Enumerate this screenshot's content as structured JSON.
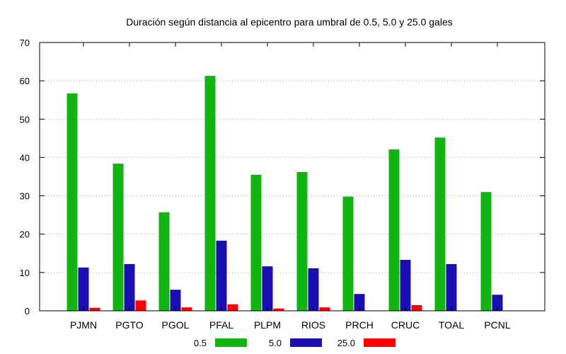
{
  "chart_data": {
    "type": "bar",
    "title": "Duración según distancia al epicentro para umbral de 0.5, 5.0 y 25.0 gales",
    "xlabel": "",
    "ylabel": "",
    "ylim": [
      0,
      70
    ],
    "yticks": [
      0,
      10,
      20,
      30,
      40,
      50,
      60,
      70
    ],
    "grid": true,
    "legend_position": "bottom",
    "categories": [
      "PJMN",
      "PGTO",
      "PGOL",
      "PFAL",
      "PLPM",
      "RIOS",
      "PRCH",
      "CRUC",
      "TOAL",
      "PCNL"
    ],
    "series": [
      {
        "name": "0.5",
        "color": "#11b411",
        "values": [
          56.7,
          38.4,
          25.7,
          61.3,
          35.5,
          36.2,
          29.8,
          42.1,
          45.2,
          31.0
        ]
      },
      {
        "name": "5.0",
        "color": "#1a0fb0",
        "values": [
          11.3,
          12.2,
          5.5,
          18.3,
          11.6,
          11.1,
          4.4,
          13.3,
          12.2,
          4.2
        ]
      },
      {
        "name": "25.0",
        "color": "#ff0000",
        "values": [
          0.8,
          2.7,
          0.9,
          1.7,
          0.6,
          0.9,
          0,
          1.5,
          0,
          0
        ]
      }
    ]
  }
}
